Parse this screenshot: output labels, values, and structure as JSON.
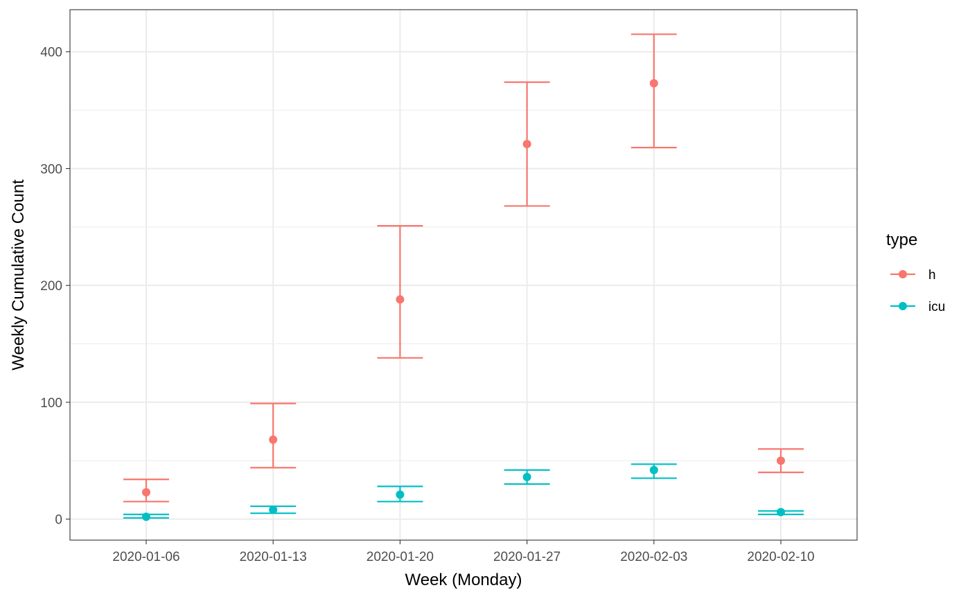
{
  "chart_data": {
    "type": "scatter",
    "title": "",
    "xlabel": "Week (Monday)",
    "ylabel": "Weekly Cumulative Count",
    "categories": [
      "2020-01-06",
      "2020-01-13",
      "2020-01-20",
      "2020-01-27",
      "2020-02-03",
      "2020-02-10"
    ],
    "y_ticks": [
      0,
      100,
      200,
      300,
      400
    ],
    "ylim": [
      -18,
      436
    ],
    "grid": true,
    "error_bars": true,
    "legend": {
      "title": "type",
      "placement": "right"
    },
    "series": [
      {
        "name": "h",
        "color": "#F8766D",
        "values": [
          23,
          68,
          188,
          321,
          373,
          50
        ],
        "lower": [
          15,
          44,
          138,
          268,
          318,
          40
        ],
        "upper": [
          34,
          99,
          251,
          374,
          415,
          60
        ]
      },
      {
        "name": "icu",
        "color": "#00BFC4",
        "values": [
          2,
          8,
          21,
          36,
          42,
          6
        ],
        "lower": [
          1,
          5,
          15,
          30,
          35,
          4
        ],
        "upper": [
          4,
          11,
          28,
          42,
          47,
          7
        ]
      }
    ]
  }
}
